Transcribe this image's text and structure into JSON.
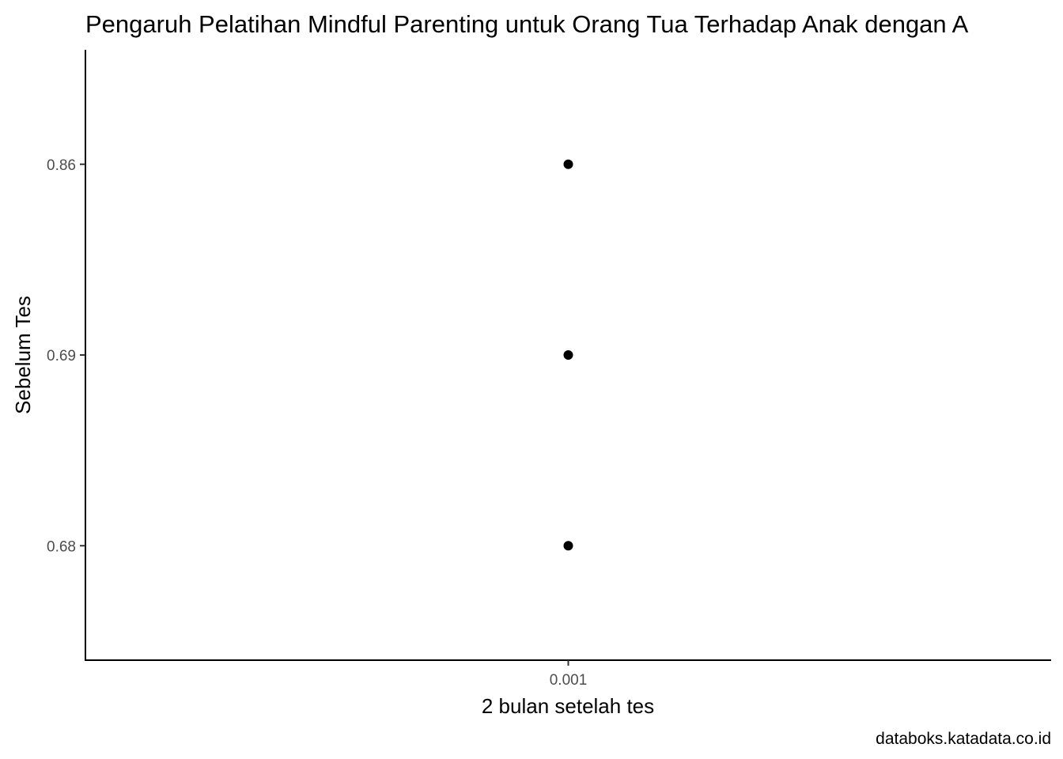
{
  "chart_data": {
    "type": "scatter",
    "title": "Pengaruh Pelatihan Mindful Parenting untuk Orang Tua Terhadap Anak dengan A",
    "xlabel": "2 bulan setelah tes",
    "ylabel": "Sebelum Tes",
    "x_scale": "categorical",
    "y_scale": "categorical",
    "x_categories": [
      "0.001"
    ],
    "y_categories": [
      "0.68",
      "0.69",
      "0.86"
    ],
    "points": [
      {
        "x": "0.001",
        "y": "0.86"
      },
      {
        "x": "0.001",
        "y": "0.69"
      },
      {
        "x": "0.001",
        "y": "0.68"
      }
    ],
    "grid": false,
    "legend": "none",
    "point_color": "#000000",
    "caption": "databoks.katadata.co.id"
  }
}
